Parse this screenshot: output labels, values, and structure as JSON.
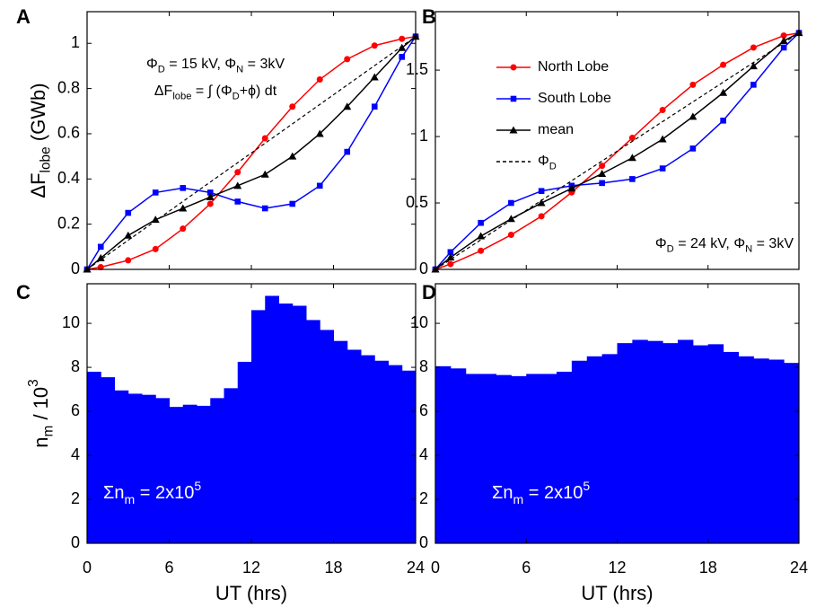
{
  "chart_data": [
    {
      "type": "line",
      "panel": "A",
      "xlim": [
        0,
        24
      ],
      "xticks": [
        0,
        6,
        12,
        18,
        24
      ],
      "xticklabels": false,
      "ylim": [
        0,
        1.14
      ],
      "yticks": [
        0,
        0.2,
        0.4,
        0.6,
        0.8,
        1
      ],
      "ylabel": [
        {
          "text": "ΔF"
        },
        {
          "text": "lobe",
          "sub": true
        },
        {
          "text": " (GWb)"
        }
      ],
      "annotations": [
        [
          {
            "text": "Φ"
          },
          {
            "text": "D",
            "sub": true
          },
          {
            "text": " = 15 kV, Φ"
          },
          {
            "text": "N",
            "sub": true
          },
          {
            "text": " = 3kV"
          }
        ],
        [
          {
            "text": "ΔF"
          },
          {
            "text": "lobe",
            "sub": true
          },
          {
            "text": " = ∫ (Φ"
          },
          {
            "text": "D",
            "sub": true
          },
          {
            "text": "+ϕ) dt"
          }
        ]
      ],
      "series": [
        {
          "color": "#ff0000",
          "marker": "circle",
          "x": [
            0,
            1,
            3,
            5,
            7,
            9,
            11,
            13,
            15,
            17,
            19,
            21,
            23,
            24
          ],
          "values": [
            0,
            0.01,
            0.04,
            0.09,
            0.18,
            0.29,
            0.43,
            0.58,
            0.72,
            0.84,
            0.93,
            0.99,
            1.02,
            1.03
          ]
        },
        {
          "color": "#0000ff",
          "marker": "square",
          "x": [
            0,
            1,
            3,
            5,
            7,
            9,
            11,
            13,
            15,
            17,
            19,
            21,
            23,
            24
          ],
          "values": [
            0,
            0.1,
            0.25,
            0.34,
            0.36,
            0.34,
            0.3,
            0.27,
            0.29,
            0.37,
            0.52,
            0.72,
            0.94,
            1.03
          ]
        },
        {
          "color": "#000000",
          "marker": "triangle",
          "x": [
            0,
            1,
            3,
            5,
            7,
            9,
            11,
            13,
            15,
            17,
            19,
            21,
            23,
            24
          ],
          "values": [
            0,
            0.05,
            0.15,
            0.22,
            0.27,
            0.32,
            0.37,
            0.42,
            0.5,
            0.6,
            0.72,
            0.85,
            0.98,
            1.03
          ]
        },
        {
          "color": "#000000",
          "dash": true,
          "x": [
            0,
            24
          ],
          "values": [
            0,
            1.03
          ]
        }
      ]
    },
    {
      "type": "line",
      "panel": "B",
      "xlim": [
        0,
        24
      ],
      "xticks": [
        0,
        6,
        12,
        18,
        24
      ],
      "xticklabels": false,
      "ylim": [
        0,
        1.94
      ],
      "yticks": [
        0,
        0.5,
        1,
        1.5
      ],
      "legend": "upper left",
      "annotations": [
        [
          {
            "text": "Φ"
          },
          {
            "text": "D",
            "sub": true
          },
          {
            "text": " = 24 kV, Φ"
          },
          {
            "text": "N",
            "sub": true
          },
          {
            "text": " = 3kV"
          }
        ]
      ],
      "series": [
        {
          "name": "North Lobe",
          "color": "#ff0000",
          "marker": "circle",
          "x": [
            0,
            1,
            3,
            5,
            7,
            9,
            11,
            13,
            15,
            17,
            19,
            21,
            23,
            24
          ],
          "values": [
            0,
            0.04,
            0.14,
            0.26,
            0.4,
            0.58,
            0.78,
            0.99,
            1.2,
            1.39,
            1.54,
            1.67,
            1.76,
            1.78
          ]
        },
        {
          "name": "South Lobe",
          "color": "#0000ff",
          "marker": "square",
          "x": [
            0,
            1,
            3,
            5,
            7,
            9,
            11,
            13,
            15,
            17,
            19,
            21,
            23,
            24
          ],
          "values": [
            0,
            0.13,
            0.35,
            0.5,
            0.59,
            0.63,
            0.65,
            0.68,
            0.76,
            0.91,
            1.12,
            1.39,
            1.67,
            1.78
          ]
        },
        {
          "name": "mean",
          "color": "#000000",
          "marker": "triangle",
          "x": [
            0,
            1,
            3,
            5,
            7,
            9,
            11,
            13,
            15,
            17,
            19,
            21,
            23,
            24
          ],
          "values": [
            0,
            0.09,
            0.25,
            0.38,
            0.5,
            0.61,
            0.72,
            0.84,
            0.98,
            1.15,
            1.33,
            1.53,
            1.72,
            1.78
          ]
        },
        {
          "name": [
            {
              "text": "Φ"
            },
            {
              "text": "D",
              "sub": true
            }
          ],
          "color": "#000000",
          "dash": true,
          "x": [
            0,
            24
          ],
          "values": [
            0,
            1.78
          ]
        }
      ]
    },
    {
      "type": "histogram",
      "panel": "C",
      "xlim": [
        0,
        24
      ],
      "xticks": [
        0,
        6,
        12,
        18,
        24
      ],
      "xlabel": "UT (hrs)",
      "ylim": [
        0,
        11.8
      ],
      "yticks": [
        0,
        2,
        4,
        6,
        8,
        10
      ],
      "color": "#0000ff",
      "ylabel": [
        {
          "text": "n"
        },
        {
          "text": "m",
          "sub": true
        },
        {
          "text": " / 10"
        },
        {
          "text": "3",
          "sup": true
        }
      ],
      "annotations": [
        [
          {
            "text": "Σn"
          },
          {
            "text": "m",
            "sub": true
          },
          {
            "text": " = 2x10"
          },
          {
            "text": "5",
            "sup": true
          }
        ]
      ],
      "bins": [
        0,
        1,
        2,
        3,
        4,
        5,
        6,
        7,
        8,
        9,
        10,
        11,
        12,
        13,
        14,
        15,
        16,
        17,
        18,
        19,
        20,
        21,
        22,
        23,
        24
      ],
      "values": [
        7.8,
        7.55,
        6.95,
        6.8,
        6.75,
        6.6,
        6.2,
        6.3,
        6.25,
        6.6,
        7.05,
        8.25,
        10.6,
        11.25,
        10.9,
        10.8,
        10.15,
        9.7,
        9.2,
        8.8,
        8.55,
        8.3,
        8.1,
        7.85
      ]
    },
    {
      "type": "histogram",
      "panel": "D",
      "xlim": [
        0,
        24
      ],
      "xticks": [
        0,
        6,
        12,
        18,
        24
      ],
      "xlabel": "UT (hrs)",
      "ylim": [
        0,
        11.8
      ],
      "yticks": [
        0,
        2,
        4,
        6,
        8,
        10
      ],
      "color": "#0000ff",
      "annotations": [
        [
          {
            "text": "Σn"
          },
          {
            "text": "m",
            "sub": true
          },
          {
            "text": " = 2x10"
          },
          {
            "text": "5",
            "sup": true
          }
        ]
      ],
      "bins": [
        0,
        1,
        2,
        3,
        4,
        5,
        6,
        7,
        8,
        9,
        10,
        11,
        12,
        13,
        14,
        15,
        16,
        17,
        18,
        19,
        20,
        21,
        22,
        23,
        24
      ],
      "values": [
        8.05,
        7.95,
        7.7,
        7.7,
        7.65,
        7.6,
        7.7,
        7.7,
        7.8,
        8.3,
        8.5,
        8.6,
        9.1,
        9.25,
        9.2,
        9.1,
        9.25,
        9.0,
        9.05,
        8.7,
        8.5,
        8.4,
        8.35,
        8.2
      ]
    }
  ]
}
